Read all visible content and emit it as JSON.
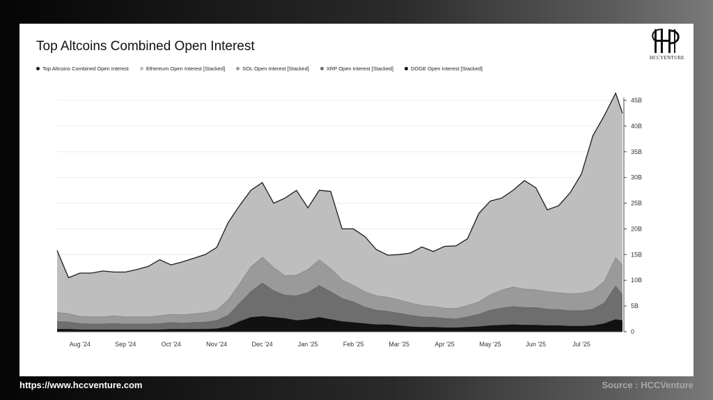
{
  "footer": {
    "url": "https://www.hccventure.com",
    "source": "Source : HCCVenture"
  },
  "logo": {
    "text": "HCCVENTURE"
  },
  "chart_data": {
    "type": "area",
    "title": "Top Altcoins Combined Open Interest",
    "legend_position": "top-left",
    "grid": true,
    "y_axis_position": "right",
    "ylim": [
      0,
      45
    ],
    "y_ticks": [
      "0",
      "5B",
      "10B",
      "15B",
      "20B",
      "25B",
      "30B",
      "35B",
      "40B",
      "45B"
    ],
    "y_tick_values": [
      0,
      5,
      10,
      15,
      20,
      25,
      30,
      35,
      40,
      45
    ],
    "x_ticks": [
      "Aug '24",
      "Sep '24",
      "Oct '24",
      "Nov '24",
      "Dec '24",
      "Jan '25",
      "Feb '25",
      "Mar '25",
      "Apr '25",
      "May '25",
      "Jun '25",
      "Jul '25"
    ],
    "x_tick_positions": [
      0.5,
      1.5,
      2.5,
      3.5,
      4.5,
      5.5,
      6.5,
      7.5,
      8.5,
      9.5,
      10.5,
      11.5
    ],
    "x": [
      0,
      0.25,
      0.5,
      0.75,
      1,
      1.25,
      1.5,
      1.75,
      2,
      2.25,
      2.5,
      2.75,
      3,
      3.25,
      3.5,
      3.75,
      4,
      4.25,
      4.5,
      4.75,
      5,
      5.25,
      5.5,
      5.75,
      6,
      6.25,
      6.5,
      6.75,
      7,
      7.25,
      7.5,
      7.75,
      8,
      8.25,
      8.5,
      8.75,
      9,
      9.25,
      9.5,
      9.75,
      10,
      10.25,
      10.5,
      10.75,
      11,
      11.25,
      11.5,
      11.75,
      12,
      12.25,
      12.4
    ],
    "series": [
      {
        "name": "DOGE Open Interest [Stacked]",
        "color": "#111111",
        "values": [
          0.5,
          0.5,
          0.4,
          0.4,
          0.4,
          0.4,
          0.4,
          0.4,
          0.4,
          0.4,
          0.5,
          0.5,
          0.5,
          0.5,
          0.6,
          1.0,
          2.0,
          2.8,
          3.0,
          2.8,
          2.6,
          2.2,
          2.4,
          2.8,
          2.4,
          2.0,
          1.8,
          1.6,
          1.4,
          1.4,
          1.2,
          1.0,
          0.9,
          0.9,
          0.8,
          0.8,
          0.9,
          1.0,
          1.2,
          1.3,
          1.4,
          1.3,
          1.3,
          1.2,
          1.2,
          1.1,
          1.1,
          1.2,
          1.6,
          2.4,
          2.2
        ]
      },
      {
        "name": "XRP Open Interest [Stacked]",
        "color": "#6e6e6e",
        "values": [
          1.5,
          1.4,
          1.2,
          1.1,
          1.1,
          1.2,
          1.1,
          1.1,
          1.1,
          1.2,
          1.3,
          1.2,
          1.3,
          1.4,
          1.6,
          2.2,
          3.5,
          5.0,
          6.5,
          5.2,
          4.5,
          4.8,
          5.2,
          6.2,
          5.4,
          4.5,
          4.0,
          3.2,
          2.8,
          2.6,
          2.4,
          2.2,
          2.0,
          1.9,
          1.8,
          1.7,
          2.0,
          2.4,
          3.0,
          3.3,
          3.5,
          3.4,
          3.4,
          3.2,
          3.1,
          3.0,
          3.0,
          3.2,
          4.0,
          6.5,
          5.0
        ]
      },
      {
        "name": "SOL Open Interest [Stacked]",
        "color": "#9a9a9a",
        "values": [
          1.8,
          1.6,
          1.4,
          1.4,
          1.4,
          1.5,
          1.4,
          1.4,
          1.4,
          1.5,
          1.6,
          1.6,
          1.7,
          1.8,
          2.0,
          3.0,
          3.8,
          4.8,
          5.0,
          4.5,
          3.8,
          4.0,
          4.5,
          5.0,
          4.5,
          3.6,
          3.2,
          3.0,
          2.8,
          2.7,
          2.6,
          2.4,
          2.2,
          2.1,
          2.0,
          2.0,
          2.2,
          2.4,
          3.0,
          3.5,
          3.8,
          3.6,
          3.5,
          3.4,
          3.3,
          3.3,
          3.4,
          3.6,
          4.2,
          5.5,
          5.8
        ]
      },
      {
        "name": "Ethereum Open Interest [Stacked]",
        "color": "#bebebe",
        "values": [
          12.0,
          7.0,
          8.4,
          8.5,
          8.9,
          8.5,
          8.7,
          9.2,
          9.8,
          10.9,
          9.6,
          10.3,
          10.8,
          11.3,
          12.2,
          15.0,
          15.2,
          14.9,
          14.5,
          12.5,
          15.1,
          16.5,
          12.0,
          13.5,
          15.0,
          9.9,
          11.0,
          10.7,
          9.0,
          8.2,
          8.8,
          9.7,
          11.4,
          10.7,
          12.0,
          12.2,
          13.0,
          17.2,
          18.2,
          17.9,
          18.8,
          21.1,
          19.8,
          15.9,
          16.9,
          19.6,
          23.2,
          30.1,
          32.2,
          32.0,
          29.5
        ]
      }
    ],
    "total": {
      "name": "Top Altcoins Combined Open Interest",
      "color": "#1a1a1a"
    }
  }
}
